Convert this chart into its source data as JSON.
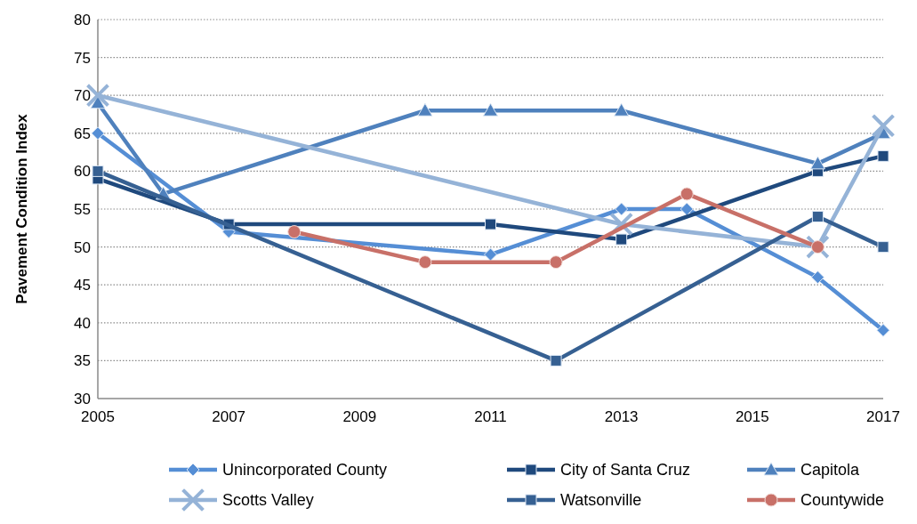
{
  "chart_data": {
    "type": "line",
    "ylabel": "Pavement Condition Index",
    "xlim": [
      2005,
      2017
    ],
    "xticks": [
      2005,
      2007,
      2009,
      2011,
      2013,
      2015,
      2017
    ],
    "ylim": [
      30,
      80
    ],
    "yticks": [
      30,
      35,
      40,
      45,
      50,
      55,
      60,
      65,
      70,
      75,
      80
    ],
    "grid": "y",
    "legend": "bottom",
    "line_style": "solid",
    "series": [
      {
        "name": "Unincorporated County",
        "color": "#558ed5",
        "marker": "diamond",
        "x": [
          2005,
          2007,
          2011,
          2013,
          2014,
          2016,
          2017
        ],
        "values": [
          65,
          52,
          49,
          55,
          55,
          46,
          39
        ]
      },
      {
        "name": "City of Santa Cruz",
        "color": "#1f497d",
        "marker": "square",
        "x": [
          2005,
          2007,
          2011,
          2013,
          2016,
          2017
        ],
        "values": [
          59,
          53,
          53,
          51,
          60,
          62
        ]
      },
      {
        "name": "Capitola",
        "color": "#4f81bd",
        "marker": "triangle",
        "x": [
          2005,
          2006,
          2010,
          2011,
          2013,
          2016,
          2017
        ],
        "values": [
          69,
          57,
          68,
          68,
          68,
          61,
          65
        ]
      },
      {
        "name": "Scotts Valley",
        "color": "#95b3d7",
        "marker": "cross",
        "x": [
          2005,
          2013,
          2016,
          2017
        ],
        "values": [
          70,
          53,
          50,
          66
        ]
      },
      {
        "name": "Watsonville",
        "color": "#366092",
        "marker": "square",
        "x": [
          2005,
          2012,
          2016,
          2017
        ],
        "values": [
          60,
          35,
          54,
          50
        ]
      },
      {
        "name": "Countywide",
        "color": "#c87068",
        "marker": "circle",
        "x": [
          2008,
          2010,
          2012,
          2014,
          2016
        ],
        "values": [
          52,
          48,
          48,
          57,
          50
        ]
      }
    ]
  }
}
